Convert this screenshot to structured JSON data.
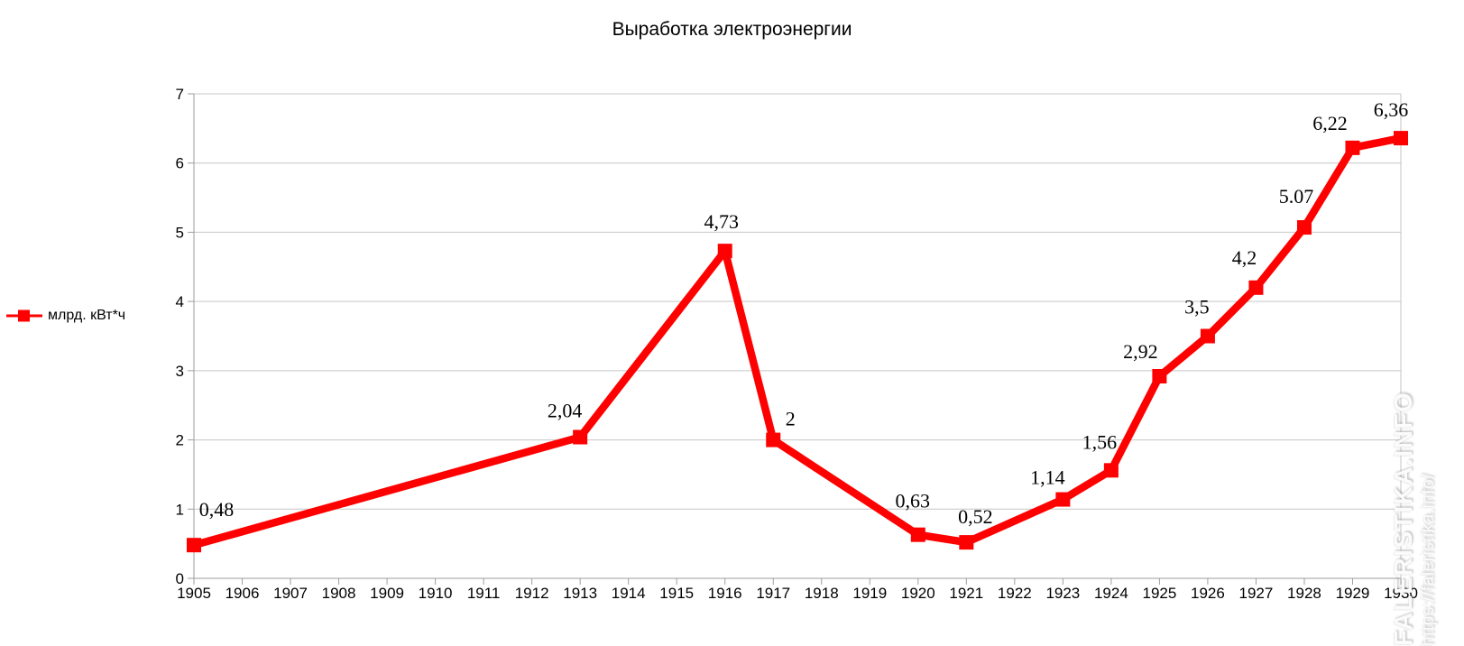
{
  "page": {
    "title": "Выработка электроэнергии"
  },
  "legend": {
    "label": "млрд. кВт*ч"
  },
  "watermark": {
    "site_name": "FALERISTIKA.INFO",
    "site_url": "https://faleristika.info/"
  },
  "colors": {
    "series": "#ff0000",
    "grid": "#c6c6c6",
    "axis": "#9e9e9e",
    "text": "#000000"
  },
  "chart_data": {
    "type": "line",
    "title": "Выработка электроэнергии",
    "series_name": "млрд. кВт*ч",
    "legend_position": "left",
    "grid": "horizontal-major",
    "marker": "square",
    "xlabel": "",
    "ylabel": "",
    "ylim": [
      0,
      7
    ],
    "y_ticks": [
      0,
      1,
      2,
      3,
      4,
      5,
      6,
      7
    ],
    "x_categories": [
      "1905",
      "1906",
      "1907",
      "1908",
      "1909",
      "1910",
      "1911",
      "1912",
      "1913",
      "1914",
      "1915",
      "1916",
      "1917",
      "1918",
      "1919",
      "1920",
      "1921",
      "1922",
      "1923",
      "1924",
      "1925",
      "1926",
      "1927",
      "1928",
      "1929",
      "1930"
    ],
    "points": [
      {
        "x": "1905",
        "y": 0.48,
        "label": "0,48"
      },
      {
        "x": "1913",
        "y": 2.04,
        "label": "2,04"
      },
      {
        "x": "1916",
        "y": 4.73,
        "label": "4,73"
      },
      {
        "x": "1917",
        "y": 2,
        "label": "2"
      },
      {
        "x": "1920",
        "y": 0.63,
        "label": "0,63"
      },
      {
        "x": "1921",
        "y": 0.52,
        "label": "0,52"
      },
      {
        "x": "1923",
        "y": 1.14,
        "label": "1,14"
      },
      {
        "x": "1924",
        "y": 1.56,
        "label": "1,56"
      },
      {
        "x": "1925",
        "y": 2.92,
        "label": "2,92"
      },
      {
        "x": "1926",
        "y": 3.5,
        "label": "3,5"
      },
      {
        "x": "1927",
        "y": 4.2,
        "label": "4,2"
      },
      {
        "x": "1928",
        "y": 5.07,
        "label": "5.07"
      },
      {
        "x": "1929",
        "y": 6.22,
        "label": "6,22"
      },
      {
        "x": "1930",
        "y": 6.36,
        "label": "6,36"
      }
    ]
  }
}
